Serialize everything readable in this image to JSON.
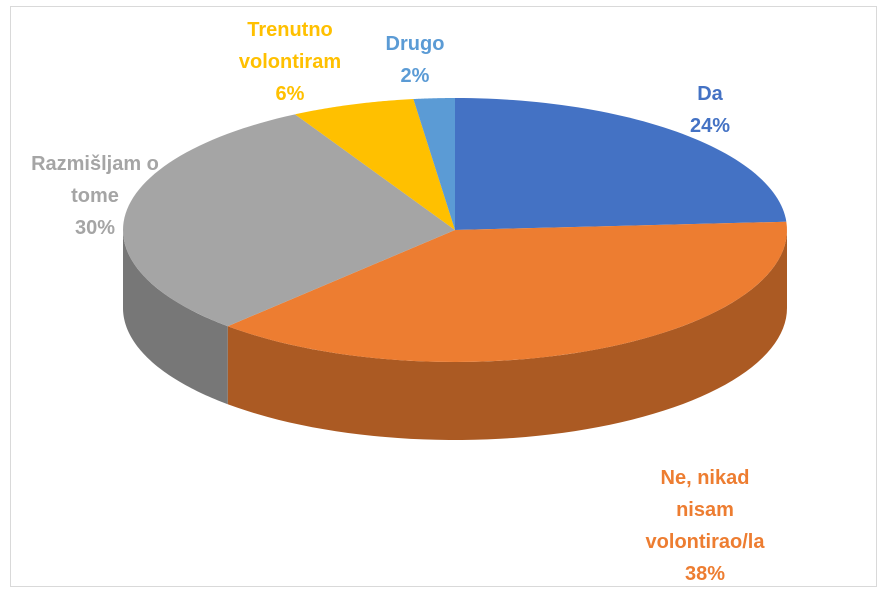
{
  "chart_data": {
    "type": "pie3d",
    "categories": [
      "Da",
      "Ne, nikad nisam volontirao/la",
      "Razmišljam o tome",
      "Trenutno volontiram",
      "Drugo"
    ],
    "values": [
      24,
      38,
      30,
      6,
      2
    ],
    "value_labels": [
      "24%",
      "38%",
      "30%",
      "6%",
      "2%"
    ],
    "colors": [
      "#4472c4",
      "#ed7d31",
      "#a5a5a5",
      "#ffc000",
      "#5b9bd5"
    ],
    "label_colors": [
      "#4472c4",
      "#ed7d31",
      "#a5a5a5",
      "#ffc000",
      "#5b9bd5"
    ]
  }
}
